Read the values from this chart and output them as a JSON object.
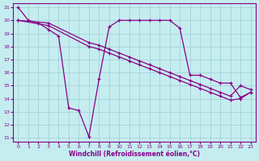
{
  "xlabel": "Windchill (Refroidissement éolien,°C)",
  "bg_color": "#c5edf0",
  "line_color": "#880088",
  "grid_color": "#9dcdd4",
  "xlim": [
    -0.5,
    23.5
  ],
  "ylim": [
    10.7,
    21.3
  ],
  "xticks": [
    0,
    1,
    2,
    3,
    4,
    5,
    6,
    7,
    8,
    9,
    10,
    11,
    12,
    13,
    14,
    15,
    16,
    17,
    18,
    19,
    20,
    21,
    22,
    23
  ],
  "yticks": [
    11,
    12,
    13,
    14,
    15,
    16,
    17,
    18,
    19,
    20,
    21
  ],
  "line1_x": [
    0,
    1,
    2,
    3,
    4,
    5,
    6,
    7,
    8,
    9,
    10,
    11,
    12,
    13,
    14,
    15,
    16,
    17,
    18,
    19,
    20,
    21,
    22,
    23
  ],
  "line1_y": [
    21.0,
    20.0,
    19.8,
    19.3,
    18.8,
    13.3,
    13.1,
    11.1,
    15.5,
    19.5,
    20.0,
    20.0,
    20.0,
    20.0,
    20.0,
    20.0,
    19.4,
    15.8,
    15.8,
    15.5,
    15.2,
    15.2,
    14.1,
    14.5
  ],
  "line2_x": [
    0,
    3,
    7,
    8,
    9,
    10,
    11,
    12,
    13,
    14,
    15,
    16,
    17,
    18,
    19,
    20,
    21,
    22,
    23
  ],
  "line2_y": [
    20.0,
    19.8,
    18.3,
    18.1,
    17.8,
    17.5,
    17.2,
    16.9,
    16.6,
    16.3,
    16.0,
    15.7,
    15.4,
    15.1,
    14.8,
    14.5,
    14.2,
    15.0,
    14.7
  ],
  "line3_x": [
    0,
    3,
    7,
    8,
    9,
    10,
    11,
    12,
    13,
    14,
    15,
    16,
    17,
    18,
    19,
    20,
    21,
    22,
    23
  ],
  "line3_y": [
    20.0,
    19.6,
    18.0,
    17.8,
    17.5,
    17.2,
    16.9,
    16.6,
    16.3,
    16.0,
    15.7,
    15.4,
    15.1,
    14.8,
    14.5,
    14.2,
    13.9,
    14.0,
    14.5
  ]
}
